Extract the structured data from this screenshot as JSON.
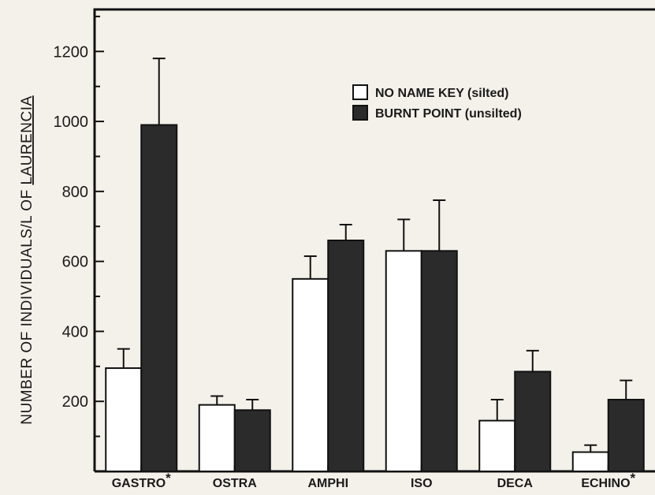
{
  "chart_data": {
    "type": "bar",
    "title": "",
    "xlabel": "",
    "ylabel": "NUMBER OF INDIVIDUALS/L OF LAURENCIA",
    "ylabel_parts": {
      "prefix": "NUMBER OF INDIVIDUALS/L OF ",
      "underlined": "LAURENCIA"
    },
    "categories": [
      "GASTRO",
      "OSTRA",
      "AMPHI",
      "ISO",
      "DECA",
      "ECHINO"
    ],
    "category_markers": [
      "*",
      "",
      "",
      "",
      "",
      "*"
    ],
    "ylim": [
      0,
      1320
    ],
    "yticks": [
      200,
      400,
      600,
      800,
      1000,
      1200
    ],
    "grid": false,
    "legend_position": "top-right",
    "series": [
      {
        "name": "NO NAME KEY (silted)",
        "color": "#ffffff",
        "values": [
          295,
          190,
          550,
          630,
          145,
          55
        ],
        "errors": [
          55,
          25,
          65,
          90,
          60,
          20
        ]
      },
      {
        "name": "BURNT POINT (unsilted)",
        "color": "#2b2b2b",
        "values": [
          990,
          175,
          660,
          630,
          285,
          205
        ],
        "errors": [
          190,
          30,
          45,
          145,
          60,
          55
        ]
      }
    ]
  }
}
